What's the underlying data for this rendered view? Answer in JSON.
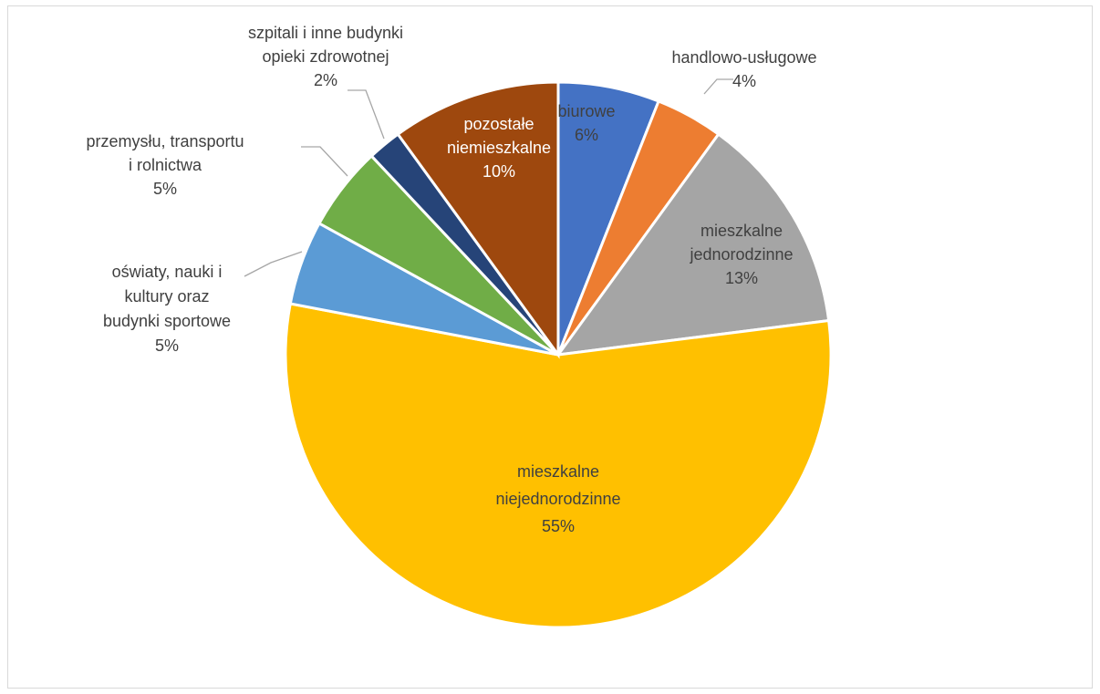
{
  "chart_data": {
    "type": "pie",
    "title": "",
    "slices": [
      {
        "label_lines": [
          "biurowe"
        ],
        "value_label": "6%",
        "value": 6,
        "color": "#4472c4",
        "label_inside": true,
        "label_color": "#404040"
      },
      {
        "label_lines": [
          "handlowo-usługowe"
        ],
        "value_label": "4%",
        "value": 4,
        "color": "#ed7d31",
        "label_inside": false,
        "label_color": "#404040"
      },
      {
        "label_lines": [
          "mieszkalne",
          "jednorodzinne"
        ],
        "value_label": "13%",
        "value": 13,
        "color": "#a5a5a5",
        "label_inside": true,
        "label_color": "#404040"
      },
      {
        "label_lines": [
          "mieszkalne",
          "niejednorodzinne"
        ],
        "value_label": "55%",
        "value": 55,
        "color": "#ffc000",
        "label_inside": true,
        "label_color": "#404040"
      },
      {
        "label_lines": [
          "oświaty, nauki i",
          "kultury oraz",
          "budynki sportowe"
        ],
        "value_label": "5%",
        "value": 5,
        "color": "#5b9bd5",
        "label_inside": false,
        "label_color": "#404040"
      },
      {
        "label_lines": [
          "przemysłu, transportu",
          "i rolnictwa"
        ],
        "value_label": "5%",
        "value": 5,
        "color": "#70ad47",
        "label_inside": false,
        "label_color": "#404040"
      },
      {
        "label_lines": [
          "szpitali i inne budynki",
          "opieki zdrowotnej"
        ],
        "value_label": "2%",
        "value": 2,
        "color": "#264478",
        "label_inside": false,
        "label_color": "#404040"
      },
      {
        "label_lines": [
          "pozostałe",
          "niemieszkalne"
        ],
        "value_label": "10%",
        "value": 10,
        "color": "#9e480e",
        "label_inside": true,
        "label_color": "#ffffff"
      }
    ]
  }
}
